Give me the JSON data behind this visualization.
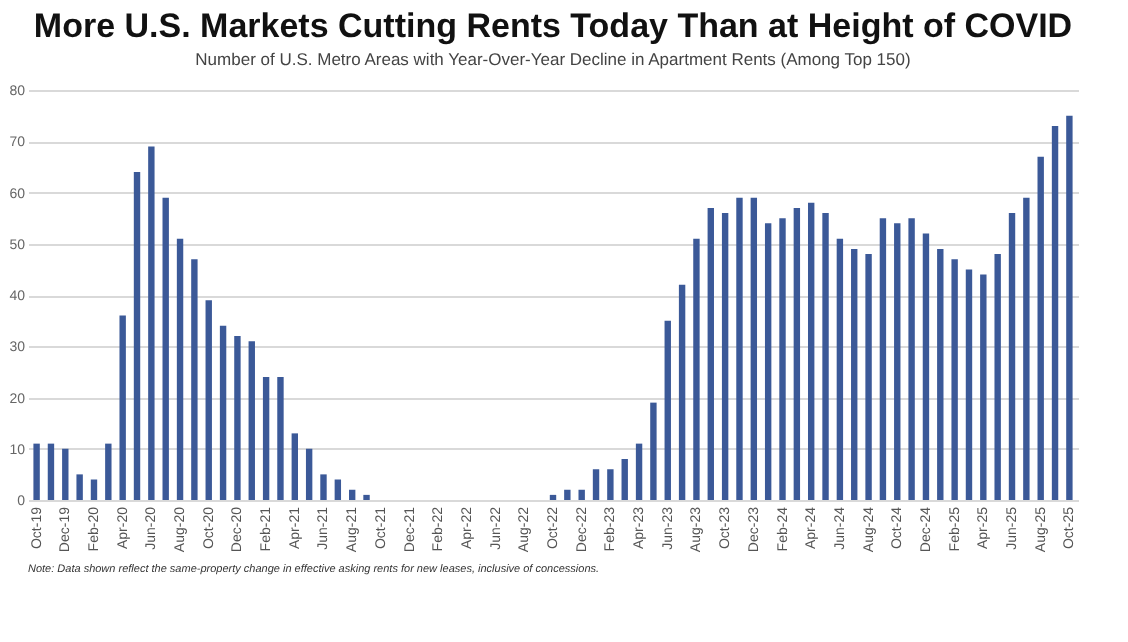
{
  "chart_data": {
    "type": "bar",
    "title": "More U.S. Markets Cutting Rents Today Than at Height of COVID",
    "subtitle": "Number of U.S. Metro Areas with Year-Over-Year Decline in Apartment Rents (Among Top 150)",
    "categories": [
      "Oct-19",
      null,
      "Dec-19",
      null,
      "Feb-20",
      null,
      "Apr-20",
      null,
      "Jun-20",
      null,
      "Aug-20",
      null,
      "Oct-20",
      null,
      "Dec-20",
      null,
      "Feb-21",
      null,
      "Apr-21",
      null,
      "Jun-21",
      null,
      "Aug-21",
      null,
      "Oct-21",
      null,
      "Dec-21",
      null,
      "Feb-22",
      null,
      "Apr-22",
      null,
      "Jun-22",
      null,
      "Aug-22",
      null,
      "Oct-22",
      null,
      "Dec-22",
      null,
      "Feb-23",
      null,
      "Apr-23",
      null,
      "Jun-23",
      null,
      "Aug-23",
      null,
      "Oct-23",
      null,
      "Dec-23",
      null,
      "Feb-24",
      null,
      "Apr-24",
      null,
      "Jun-24",
      null,
      "Aug-24",
      null,
      "Oct-24",
      null,
      "Dec-24",
      null,
      "Feb-25",
      null,
      "Apr-25",
      null,
      "Jun-25",
      null,
      "Aug-25",
      null,
      "Oct-25"
    ],
    "values": [
      11,
      11,
      10,
      5,
      4,
      11,
      36,
      64,
      69,
      59,
      51,
      47,
      39,
      34,
      32,
      31,
      24,
      24,
      13,
      10,
      5,
      4,
      2,
      1,
      0,
      0,
      0,
      0,
      0,
      0,
      0,
      0,
      0,
      0,
      0,
      0,
      1,
      2,
      2,
      6,
      6,
      8,
      11,
      19,
      35,
      42,
      51,
      57,
      56,
      59,
      59,
      54,
      55,
      57,
      58,
      56,
      51,
      49,
      48,
      55,
      54,
      55,
      52,
      49,
      47,
      45,
      44,
      48,
      56,
      59,
      67,
      73,
      75
    ],
    "color": "#3b5998",
    "ylim": [
      0,
      80
    ],
    "yticks": [
      0,
      10,
      20,
      30,
      40,
      50,
      60,
      70,
      80
    ],
    "grid": "y",
    "annotations": [
      "Note: Data shown reflect the same-property change in effective asking rents for new leases, inclusive of concessions."
    ]
  }
}
